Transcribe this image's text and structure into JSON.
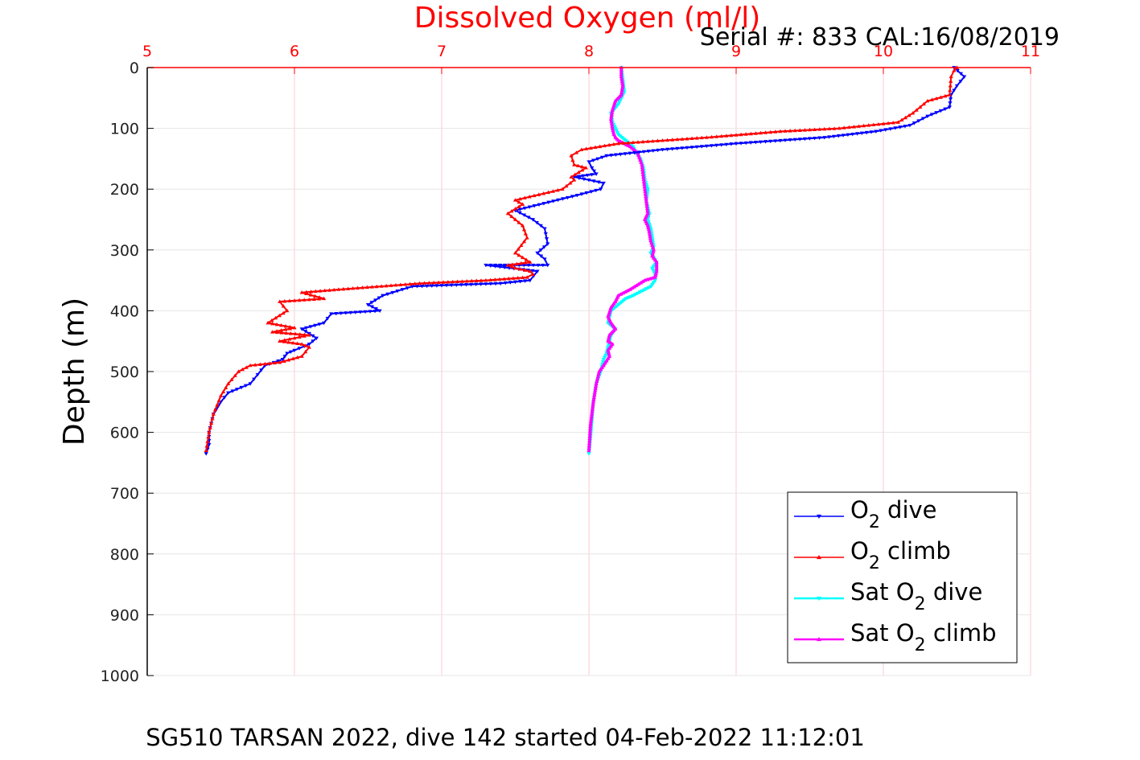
{
  "chart_data": {
    "type": "line",
    "title": "Dissolved Oxygen (ml/l)",
    "subtitle": "Serial #: 833  CAL:16/08/2019",
    "ylabel": "Depth (m)",
    "footer": "SG510 TARSAN 2022, dive 142 started 04-Feb-2022 11:12:01",
    "xlim": [
      5,
      11
    ],
    "ylim": [
      0,
      1000
    ],
    "y_reversed": true,
    "x_axis_position": "top",
    "x_ticks": [
      "5",
      "6",
      "7",
      "8",
      "9",
      "10",
      "11"
    ],
    "y_ticks": [
      "0",
      "100",
      "200",
      "300",
      "400",
      "500",
      "600",
      "700",
      "800",
      "900",
      "1000"
    ],
    "grid": true,
    "legend_position": "bottom-right",
    "colors": {
      "title": "#ff0000",
      "x_ticks": "#ff0000",
      "grid": "#ffc8d2",
      "o2_dive": "#0000ff",
      "o2_climb": "#ff0000",
      "sat_dive": "#00ffff",
      "sat_climb": "#ff00ff"
    },
    "legend": [
      {
        "pre": "O",
        "sub": "2",
        "post": " dive"
      },
      {
        "pre": "O",
        "sub": "2",
        "post": " climb"
      },
      {
        "pre": "Sat O",
        "sub": "2",
        "post": " dive"
      },
      {
        "pre": "Sat O",
        "sub": "2",
        "post": " climb"
      }
    ],
    "series": [
      {
        "id": "o2_dive",
        "marker": "down-triangle",
        "x": [
          10.48,
          10.55,
          10.5,
          10.46,
          10.45,
          10.3,
          10.18,
          9.95,
          9.6,
          9.0,
          8.5,
          8.12,
          8.0,
          8.02,
          8.05,
          7.9,
          8.1,
          8.08,
          7.92,
          7.5,
          7.62,
          7.7,
          7.72,
          7.65,
          7.7,
          7.72,
          7.3,
          7.65,
          7.6,
          7.4,
          6.8,
          6.6,
          6.5,
          6.58,
          6.25,
          6.2,
          6.05,
          6.15,
          6.1,
          6.0,
          5.95,
          5.92,
          5.8,
          5.75,
          5.7,
          5.55,
          5.5,
          5.45,
          5.42,
          5.42,
          5.4
        ],
        "y": [
          0,
          15,
          30,
          45,
          65,
          80,
          95,
          105,
          115,
          125,
          135,
          145,
          155,
          165,
          175,
          180,
          190,
          200,
          210,
          235,
          250,
          265,
          290,
          305,
          315,
          325,
          325,
          335,
          350,
          355,
          360,
          375,
          390,
          400,
          405,
          420,
          430,
          445,
          455,
          465,
          470,
          480,
          490,
          505,
          520,
          535,
          550,
          570,
          600,
          620,
          635
        ]
      },
      {
        "id": "o2_climb",
        "marker": "up-triangle",
        "x": [
          10.5,
          10.48,
          10.46,
          10.45,
          10.3,
          10.2,
          10.1,
          9.9,
          9.7,
          9.3,
          8.8,
          8.2,
          7.95,
          7.88,
          7.9,
          7.98,
          7.88,
          7.9,
          7.82,
          7.5,
          7.55,
          7.45,
          7.55,
          7.58,
          7.5,
          7.6,
          7.45,
          7.5,
          7.6,
          7.62,
          7.58,
          7.3,
          6.85,
          6.3,
          6.05,
          6.2,
          5.9,
          5.95,
          5.82,
          6.0,
          5.85,
          6.1,
          5.9,
          6.05,
          6.1,
          6.05,
          5.9,
          5.7,
          5.62,
          5.55,
          5.5,
          5.45,
          5.42,
          5.4
        ],
        "y": [
          0,
          5,
          15,
          45,
          55,
          75,
          90,
          95,
          100,
          105,
          115,
          125,
          135,
          145,
          160,
          165,
          180,
          185,
          200,
          218,
          225,
          240,
          260,
          280,
          305,
          320,
          325,
          330,
          335,
          340,
          345,
          350,
          355,
          365,
          370,
          380,
          385,
          400,
          420,
          428,
          435,
          440,
          450,
          455,
          460,
          475,
          485,
          490,
          500,
          520,
          540,
          570,
          600,
          630
        ]
      },
      {
        "id": "sat_dive",
        "marker": "down-triangle",
        "x": [
          8.22,
          8.23,
          8.24,
          8.22,
          8.2,
          8.15,
          8.16,
          8.18,
          8.2,
          8.25,
          8.3,
          8.32,
          8.35,
          8.37,
          8.38,
          8.4,
          8.39,
          8.41,
          8.4,
          8.42,
          8.43,
          8.44,
          8.42,
          8.46,
          8.43,
          8.45,
          8.45,
          8.42,
          8.3,
          8.25,
          8.2,
          8.15,
          8.14,
          8.13,
          8.18,
          8.15,
          8.13,
          8.12,
          8.1,
          8.08,
          8.05,
          8.03,
          8.02,
          8.01,
          8.0
        ],
        "y": [
          0,
          20,
          40,
          50,
          60,
          75,
          90,
          100,
          110,
          120,
          130,
          140,
          150,
          165,
          185,
          200,
          220,
          240,
          250,
          265,
          280,
          295,
          305,
          320,
          330,
          340,
          350,
          360,
          375,
          380,
          390,
          400,
          410,
          420,
          430,
          440,
          460,
          470,
          480,
          500,
          520,
          550,
          580,
          610,
          635
        ]
      },
      {
        "id": "sat_climb",
        "marker": "up-triangle",
        "x": [
          8.22,
          8.22,
          8.23,
          8.22,
          8.18,
          8.16,
          8.15,
          8.16,
          8.17,
          8.18,
          8.2,
          8.24,
          8.28,
          8.33,
          8.36,
          8.37,
          8.38,
          8.39,
          8.4,
          8.38,
          8.4,
          8.41,
          8.42,
          8.44,
          8.43,
          8.46,
          8.46,
          8.45,
          8.38,
          8.28,
          8.2,
          8.18,
          8.15,
          8.13,
          8.15,
          8.18,
          8.14,
          8.13,
          8.16,
          8.13,
          8.14,
          8.1,
          8.07,
          8.05,
          8.03,
          8.01,
          8.0
        ],
        "y": [
          0,
          15,
          30,
          45,
          55,
          70,
          85,
          100,
          110,
          115,
          120,
          125,
          130,
          140,
          160,
          180,
          200,
          220,
          240,
          250,
          260,
          270,
          285,
          300,
          310,
          320,
          335,
          345,
          350,
          365,
          375,
          385,
          395,
          410,
          420,
          430,
          440,
          450,
          455,
          465,
          475,
          490,
          500,
          520,
          550,
          590,
          630
        ]
      }
    ]
  }
}
